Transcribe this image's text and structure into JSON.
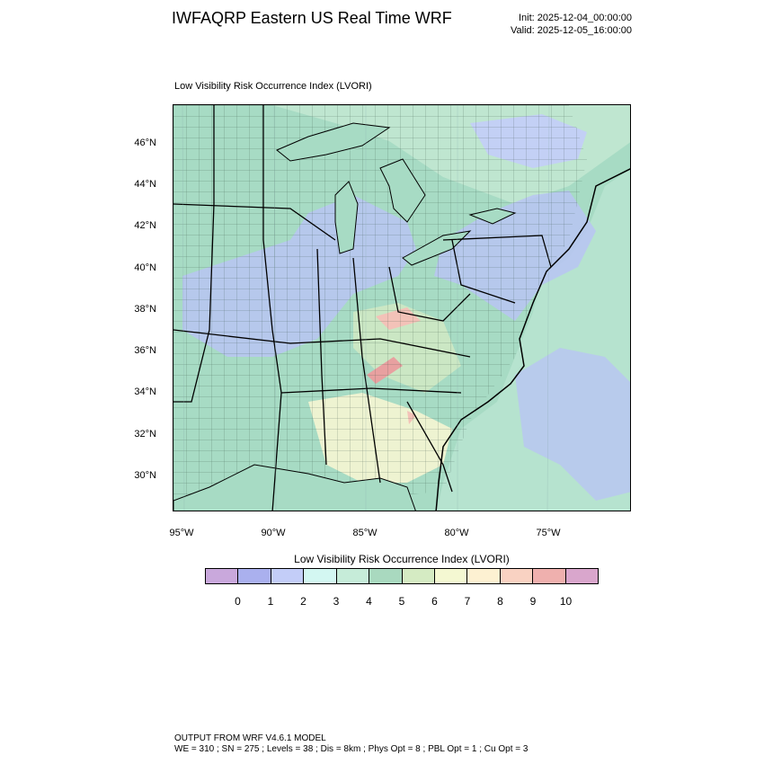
{
  "header": {
    "title": "IWFAQRP Eastern US Real Time WRF",
    "init": "Init: 2025-12-04_00:00:00",
    "valid": "Valid: 2025-12-05_16:00:00"
  },
  "map": {
    "title": "Low Visibility Risk Occurrence Index   (LVORI)",
    "lat_labels": [
      "46°N",
      "44°N",
      "42°N",
      "40°N",
      "38°N",
      "36°N",
      "34°N",
      "32°N",
      "30°N"
    ],
    "lon_labels": [
      "95°W",
      "90°W",
      "85°W",
      "80°W",
      "75°W"
    ],
    "colors": {
      "land_base": "#a7dbc4",
      "ocean": "#b6e3cf",
      "low_blue": "#b9c4f3",
      "cyan": "#d4f6f1",
      "green": "#cfe8c4",
      "yellow": "#f6f5d3",
      "tan": "#f6e9cf",
      "pink": "#f3c2b8",
      "red": "#e8a0a0"
    }
  },
  "colorbar": {
    "title": "Low Visibility Risk Occurrence Index  (LVORI)",
    "colors": [
      "#c9a8dc",
      "#aab0ee",
      "#c3cdf8",
      "#d3f7f2",
      "#c6ecd9",
      "#a9d9bf",
      "#d5ebc3",
      "#f4f8d2",
      "#fdf1d2",
      "#f9d2c2",
      "#efb0ae",
      "#d9a6cc"
    ],
    "ticks": [
      "0",
      "1",
      "2",
      "3",
      "4",
      "5",
      "6",
      "7",
      "8",
      "9",
      "10"
    ]
  },
  "footer": {
    "line1": "OUTPUT FROM WRF V4.6.1 MODEL",
    "line2": "WE = 310 ; SN = 275 ; Levels = 38 ; Dis = 8km ; Phys Opt = 8 ; PBL Opt = 1 ; Cu Opt = 3"
  }
}
